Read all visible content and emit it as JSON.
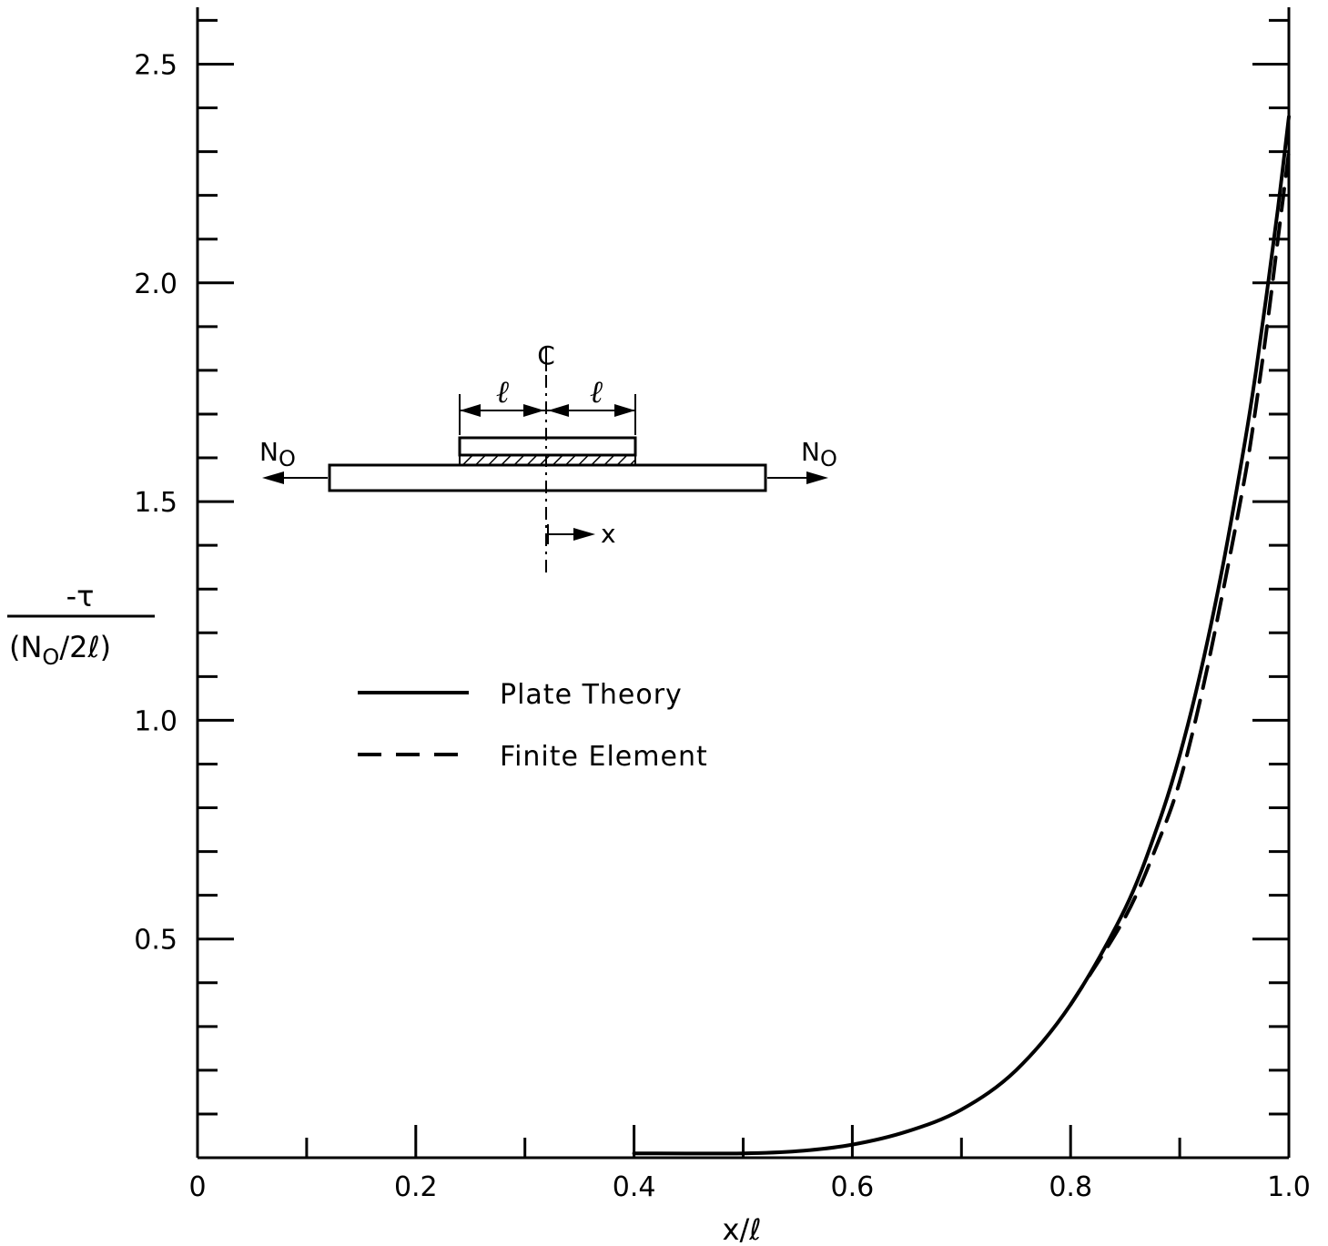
{
  "chart_data": {
    "type": "line",
    "xlabel": "x/ℓ",
    "ylabel_numerator": "-τ",
    "ylabel_denominator": "(N",
    "ylabel_denominator_sub": "O",
    "ylabel_denominator_tail": "/2ℓ)",
    "xlim": [
      0,
      1.0
    ],
    "ylim": [
      0,
      2.63
    ],
    "x_ticks": [
      {
        "value": 0,
        "label": "0"
      },
      {
        "value": 0.2,
        "label": "0.2"
      },
      {
        "value": 0.4,
        "label": "0.4"
      },
      {
        "value": 0.6,
        "label": "0.6"
      },
      {
        "value": 0.8,
        "label": "0.8"
      },
      {
        "value": 1.0,
        "label": "1.0"
      }
    ],
    "x_minor_step": 0.1,
    "y_ticks": [
      {
        "value": 0.5,
        "label": "0.5"
      },
      {
        "value": 1.0,
        "label": "1.0"
      },
      {
        "value": 1.5,
        "label": "1.5"
      },
      {
        "value": 2.0,
        "label": "2.0"
      },
      {
        "value": 2.5,
        "label": "2.5"
      }
    ],
    "y_minor_step": 0.1,
    "grid": false,
    "legend_position": "center-left",
    "series": [
      {
        "name": "Plate Theory",
        "style": "solid",
        "x": [
          0.4,
          0.5,
          0.55,
          0.6,
          0.65,
          0.7,
          0.75,
          0.8,
          0.85,
          0.88,
          0.9,
          0.92,
          0.94,
          0.96,
          0.97,
          0.98,
          0.99,
          1.0
        ],
        "y": [
          0.01,
          0.01,
          0.015,
          0.03,
          0.06,
          0.11,
          0.2,
          0.35,
          0.57,
          0.76,
          0.92,
          1.12,
          1.36,
          1.64,
          1.8,
          1.98,
          2.17,
          2.38
        ]
      },
      {
        "name": "Finite Element",
        "style": "dashed",
        "x": [
          0.8,
          0.85,
          0.88,
          0.9,
          0.92,
          0.94,
          0.96,
          0.97,
          0.98,
          0.99,
          1.0
        ],
        "y": [
          0.35,
          0.55,
          0.72,
          0.86,
          1.06,
          1.3,
          1.56,
          1.72,
          1.9,
          2.1,
          2.3
        ]
      }
    ],
    "inset": {
      "centerline_label": "C",
      "length_label_left": "ℓ",
      "length_label_right": "ℓ",
      "load_left": "N",
      "load_left_sub": "O",
      "load_right": "N",
      "load_right_sub": "O",
      "coordinate_label": "x"
    }
  }
}
